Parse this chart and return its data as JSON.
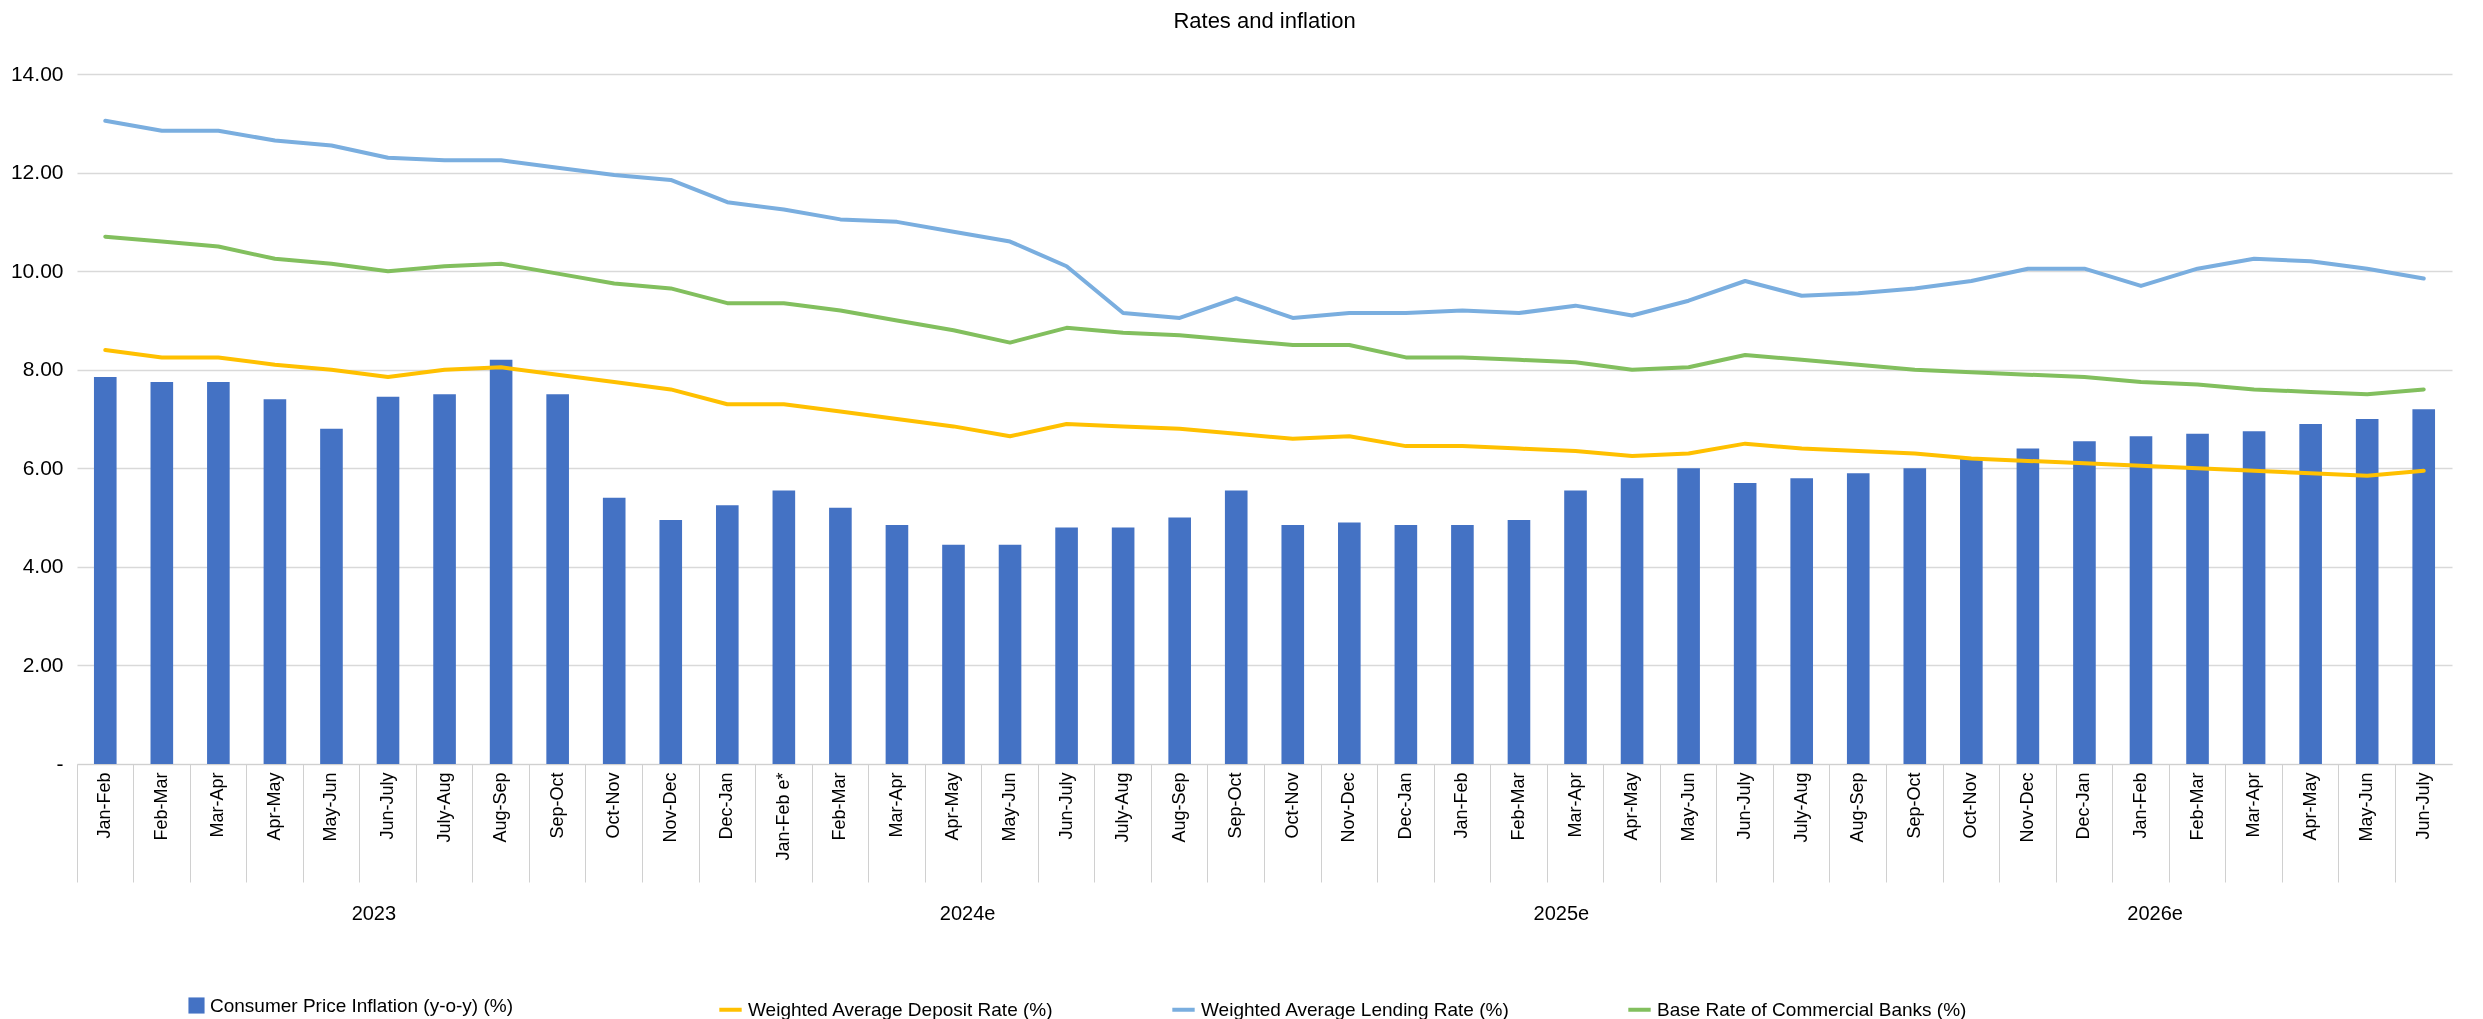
{
  "chart_data": {
    "type": "bar",
    "title": "Rates and inflation",
    "categories": [
      "Jan-Feb",
      "Feb-Mar",
      "Mar-Apr",
      "Apr-May",
      "May-Jun",
      "Jun-July",
      "July-Aug",
      "Aug-Sep",
      "Sep-Oct",
      "Oct-Nov",
      "Nov-Dec",
      "Dec-Jan",
      "Jan-Feb e*",
      "Feb-Mar",
      "Mar-Apr",
      "Apr-May",
      "May-Jun",
      "Jun-July",
      "July-Aug",
      "Aug-Sep",
      "Sep-Oct",
      "Oct-Nov",
      "Nov-Dec",
      "Dec-Jan",
      "Jan-Feb",
      "Feb-Mar",
      "Mar-Apr",
      "Apr-May",
      "May-Jun",
      "Jun-July",
      "July-Aug",
      "Aug-Sep",
      "Sep-Oct",
      "Oct-Nov",
      "Nov-Dec",
      "Dec-Jan",
      "Jan-Feb",
      "Feb-Mar",
      "Mar-Apr",
      "Apr-May",
      "May-Jun",
      "Jun-July"
    ],
    "series": [
      {
        "name": "Consumer Price Inflation (y-o-y) (%)",
        "color": "#4472c4",
        "values": [
          7.85,
          7.75,
          7.75,
          7.4,
          6.8,
          7.45,
          7.5,
          8.2,
          7.5,
          5.4,
          4.95,
          5.25,
          5.55,
          5.2,
          4.85,
          4.45,
          4.45,
          4.8,
          4.8,
          5.0,
          5.55,
          4.85,
          4.9,
          4.85,
          4.85,
          4.95,
          5.55,
          5.8,
          6.0,
          5.7,
          5.8,
          5.9,
          6.0,
          6.2,
          6.4,
          6.55,
          6.65,
          6.7,
          6.75,
          6.9,
          7.0,
          7.2
        ]
      },
      {
        "name": "Weighted Average Deposit Rate (%)",
        "type": "line",
        "color": "#ffc000",
        "values": [
          8.4,
          8.25,
          8.25,
          8.1,
          8.0,
          7.85,
          8.0,
          8.05,
          7.9,
          7.75,
          7.6,
          7.3,
          7.3,
          7.15,
          7.0,
          6.85,
          6.65,
          6.9,
          6.85,
          6.8,
          6.7,
          6.6,
          6.65,
          6.45,
          6.45,
          6.4,
          6.35,
          6.25,
          6.3,
          6.5,
          6.4,
          6.35,
          6.3,
          6.2,
          6.15,
          6.1,
          6.05,
          6.0,
          5.95,
          5.9,
          5.85,
          5.95
        ]
      },
      {
        "name": "Weighted Average Lending Rate (%)",
        "type": "line",
        "color": "#7aaedf",
        "values": [
          13.05,
          12.85,
          12.85,
          12.65,
          12.55,
          12.3,
          12.25,
          12.25,
          12.1,
          11.95,
          11.85,
          11.4,
          11.25,
          11.05,
          11.0,
          10.8,
          10.6,
          10.1,
          9.15,
          9.05,
          9.45,
          9.05,
          9.15,
          9.15,
          9.2,
          9.15,
          9.3,
          9.1,
          9.4,
          9.8,
          9.5,
          9.55,
          9.65,
          9.8,
          10.05,
          10.05,
          9.7,
          10.05,
          10.25,
          10.2,
          10.05,
          9.85
        ]
      },
      {
        "name": "Base Rate of Commercial Banks (%)",
        "type": "line",
        "color": "#82bf5e",
        "values": [
          10.7,
          10.6,
          10.5,
          10.25,
          10.15,
          10.0,
          10.1,
          10.15,
          9.95,
          9.75,
          9.65,
          9.35,
          9.35,
          9.2,
          9.0,
          8.8,
          8.55,
          8.85,
          8.75,
          8.7,
          8.6,
          8.5,
          8.5,
          8.25,
          8.25,
          8.2,
          8.15,
          8.0,
          8.05,
          8.3,
          8.2,
          8.1,
          8.0,
          7.95,
          7.9,
          7.85,
          7.75,
          7.7,
          7.6,
          7.55,
          7.5,
          7.6
        ]
      }
    ],
    "annotations": [
      "2023",
      "2024e",
      "2025e",
      "2026e"
    ],
    "ylim": [
      0,
      14
    ],
    "yticks": [
      {
        "value": 0,
        "label": "-"
      },
      {
        "value": 2,
        "label": "2.00"
      },
      {
        "value": 4,
        "label": "4.00"
      },
      {
        "value": 6,
        "label": "6.00"
      },
      {
        "value": 8,
        "label": "8.00"
      },
      {
        "value": 10,
        "label": "10.00"
      },
      {
        "value": 12,
        "label": "12.00"
      },
      {
        "value": 14,
        "label": "14.00"
      }
    ],
    "grid": "y",
    "legend": "bottom",
    "marker": "none",
    "line_style": "solid"
  }
}
